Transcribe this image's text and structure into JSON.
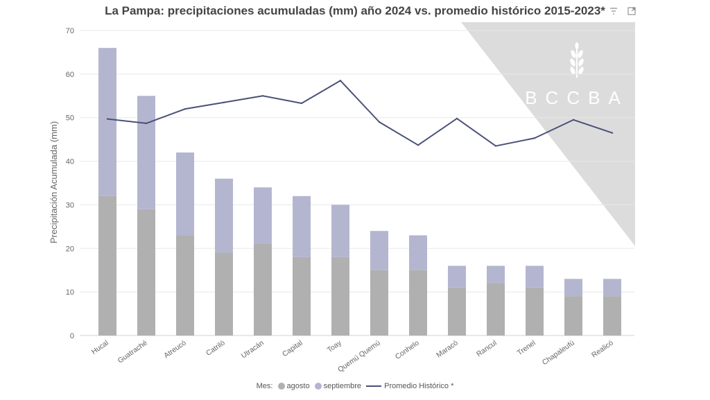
{
  "title": "La Pampa: precipitaciones acumuladas (mm) año 2024 vs. promedio histórico 2015-2023*",
  "watermark": {
    "text": "BCCBA",
    "color": "#dcdcdc"
  },
  "icons": [
    "filter-icon",
    "expand-icon"
  ],
  "colors": {
    "agosto": "#b0b0b0",
    "septiembre": "#b4b6d0",
    "line": "#4a5078",
    "grid": "#e8e8e8"
  },
  "legend": {
    "title": "Mes:",
    "agosto": "agosto",
    "septiembre": "septiembre",
    "line": "Promedio Histórico *"
  },
  "chart_data": {
    "type": "bar",
    "stacked": true,
    "categories": [
      "Hucal",
      "Guatraché",
      "Atreucó",
      "Catriló",
      "Utracán",
      "Capital",
      "Toay",
      "Quemú Quemú",
      "Conhelo",
      "Maracó",
      "Rancul",
      "Trenel",
      "Chapaleufú",
      "Realicó"
    ],
    "series": [
      {
        "name": "agosto",
        "type": "bar",
        "values": [
          32,
          29,
          23,
          19,
          21,
          18,
          18,
          15,
          15,
          11,
          12,
          11,
          9,
          9
        ]
      },
      {
        "name": "septiembre",
        "type": "bar",
        "values": [
          34,
          26,
          19,
          17,
          13,
          14,
          12,
          9,
          8,
          5,
          4,
          5,
          4,
          4
        ]
      },
      {
        "name": "Promedio Histórico *",
        "type": "line",
        "values": [
          49.7,
          48.7,
          52,
          53.5,
          55,
          53.3,
          58.5,
          49,
          43.7,
          49.8,
          43.5,
          45.3,
          49.5,
          46.5
        ]
      }
    ],
    "ylabel": "Precipitación Acumulada (mm)",
    "xlabel": "",
    "ylim": [
      0,
      70
    ],
    "yticks": [
      0,
      10,
      20,
      30,
      40,
      50,
      60,
      70
    ],
    "grid": true,
    "legend_position": "bottom"
  }
}
